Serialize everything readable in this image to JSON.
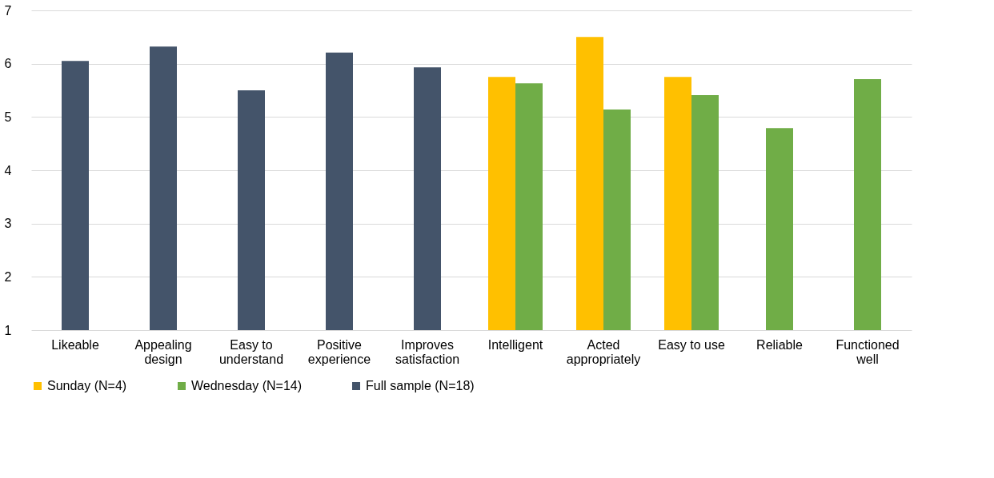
{
  "chart_data": {
    "type": "bar",
    "categories": [
      "Likeable",
      "Appealing design",
      "Easy to understand",
      "Positive experience",
      "Improves satisfaction",
      "Intelligent",
      "Acted appropriately",
      "Easy to use",
      "Reliable",
      "Functioned well"
    ],
    "series": [
      {
        "name": "Sunday (N=4)",
        "color": "#ffc000",
        "values": [
          null,
          null,
          null,
          null,
          null,
          5.75,
          6.5,
          5.75,
          null,
          null
        ]
      },
      {
        "name": "Wednesday (N=14)",
        "color": "#70ad47",
        "values": [
          null,
          null,
          null,
          null,
          null,
          5.63,
          5.14,
          5.41,
          4.79,
          5.71
        ]
      },
      {
        "name": "Full sample (N=18)",
        "color": "#44546a",
        "values": [
          6.05,
          6.32,
          5.5,
          6.21,
          5.93,
          null,
          null,
          null,
          null,
          null
        ]
      }
    ],
    "ylim": [
      1,
      7
    ],
    "yticks": [
      1,
      2,
      3,
      4,
      5,
      6,
      7
    ],
    "grid": "y",
    "legend": "bottom"
  }
}
